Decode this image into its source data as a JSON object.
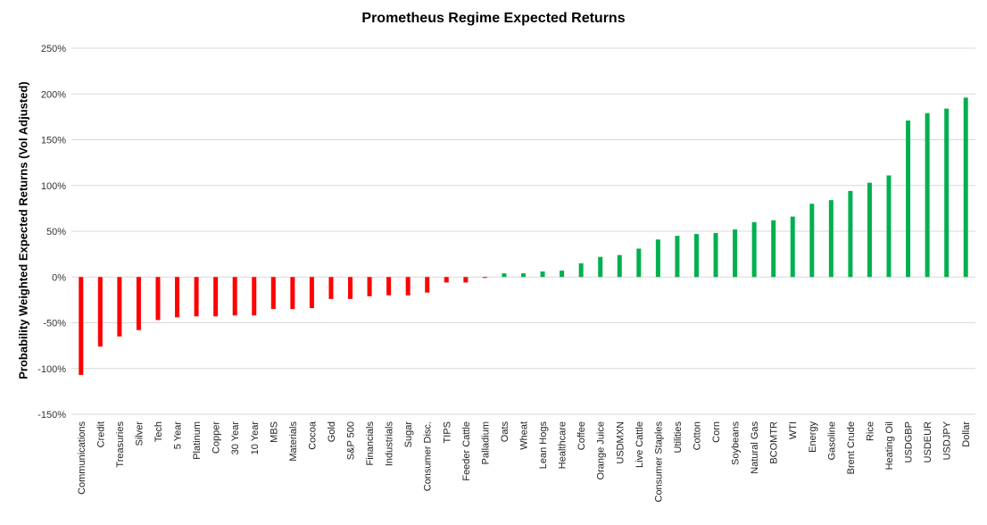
{
  "chart_data": {
    "type": "bar",
    "title": "Prometheus Regime Expected Returns",
    "xlabel": "",
    "ylabel": "Probability Weighted Expected Returns (Vol Adjusted)",
    "ylim": [
      -150,
      250
    ],
    "y_ticks": [
      "250%",
      "200%",
      "150%",
      "100%",
      "50%",
      "0%",
      "-50%",
      "-100%",
      "-150%"
    ],
    "grid": true,
    "legend": "none",
    "colors": {
      "negative": "#ff0000",
      "positive": "#00b050",
      "grid": "#d9d9d9"
    },
    "categories": [
      "Communications",
      "Credit",
      "Treasuries",
      "Silver",
      "Tech",
      "5 Year",
      "Platinum",
      "Copper",
      "30 Year",
      "10 Year",
      "MBS",
      "Materials",
      "Cocoa",
      "Gold",
      "S&P 500",
      "Financials",
      "Industrials",
      "Sugar",
      "Consumer Disc.",
      "TIPS",
      "Feeder Cattle",
      "Palladium",
      "Oats",
      "Wheat",
      "Lean Hogs",
      "Healthcare",
      "Coffee",
      "Orange Juice",
      "USDMXN",
      "Live Cattle",
      "Consumer Staples",
      "Utilities",
      "Cotton",
      "Corn",
      "Soybeans",
      "Natural Gas",
      "BCOMTR",
      "WTI",
      "Energy",
      "Gasoline",
      "Brent Crude",
      "Rice",
      "Heating Oil",
      "USDGBP",
      "USDEUR",
      "USDJPY",
      "Dollar"
    ],
    "values": [
      -107,
      -76,
      -65,
      -58,
      -47,
      -44,
      -43,
      -43,
      -42,
      -42,
      -35,
      -35,
      -34,
      -24,
      -24,
      -21,
      -20,
      -20,
      -17,
      -6,
      -6,
      -1,
      4,
      4,
      6,
      7,
      15,
      22,
      24,
      31,
      41,
      45,
      47,
      48,
      52,
      60,
      62,
      66,
      80,
      84,
      94,
      103,
      111,
      171,
      179,
      184,
      196
    ]
  }
}
